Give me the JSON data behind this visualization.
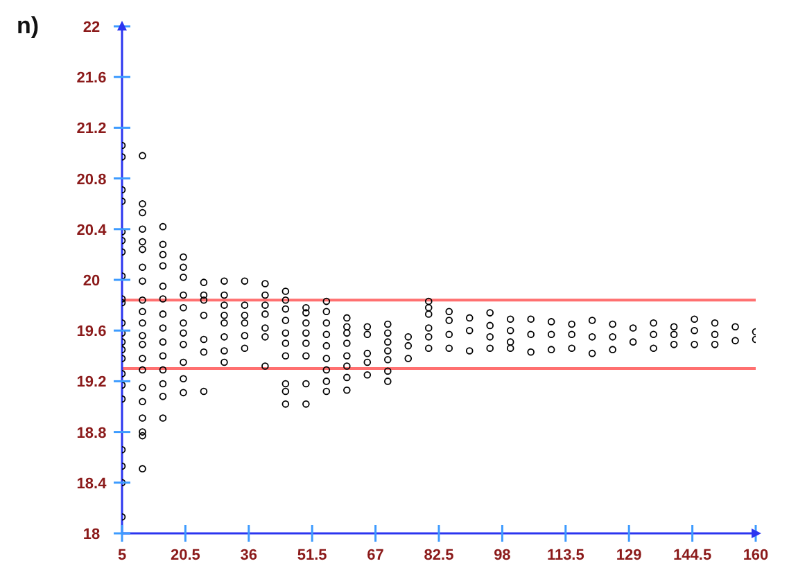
{
  "chart_data": {
    "type": "scatter",
    "title": "n)",
    "xlim": [
      5,
      160
    ],
    "xticks": [
      5,
      20.5,
      36,
      51.5,
      67,
      82.5,
      98,
      113.5,
      129,
      144.5,
      160
    ],
    "ylim": [
      18,
      22
    ],
    "yticks": [
      18,
      18.4,
      18.8,
      19.2,
      19.6,
      20,
      20.4,
      20.8,
      21.2,
      21.6,
      22
    ],
    "marker": "circle",
    "color": "#000000",
    "ref_lines": [
      {
        "axis": "y",
        "value": 19.84,
        "color": "#ff7070"
      },
      {
        "axis": "y",
        "value": 19.3,
        "color": "#ff7070"
      }
    ],
    "x": [
      5,
      5,
      5,
      5,
      5,
      5,
      5,
      5,
      5,
      5,
      5,
      5,
      5,
      5,
      5,
      5,
      5,
      5,
      5,
      5,
      5,
      5,
      10,
      10,
      10,
      10,
      10,
      10,
      10,
      10,
      10,
      10,
      10,
      10,
      10,
      10,
      10,
      10,
      10,
      10,
      10,
      10,
      10,
      15,
      15,
      15,
      15,
      15,
      15,
      15,
      15,
      15,
      15,
      15,
      15,
      15,
      15,
      20,
      20,
      20,
      20,
      20,
      20,
      20,
      20,
      20,
      20,
      20,
      25,
      25,
      25,
      25,
      25,
      25,
      25,
      30,
      30,
      30,
      30,
      30,
      30,
      30,
      30,
      35,
      35,
      35,
      35,
      35,
      35,
      40,
      40,
      40,
      40,
      40,
      40,
      40,
      45,
      45,
      45,
      45,
      45,
      45,
      45,
      45,
      45,
      45,
      50,
      50,
      50,
      50,
      50,
      50,
      50,
      50,
      55,
      55,
      55,
      55,
      55,
      55,
      55,
      55,
      55,
      60,
      60,
      60,
      60,
      60,
      60,
      60,
      60,
      65,
      65,
      65,
      65,
      65,
      70,
      70,
      70,
      70,
      70,
      70,
      70,
      75,
      75,
      75,
      80,
      80,
      80,
      80,
      80,
      80,
      85,
      85,
      85,
      85,
      90,
      90,
      90,
      95,
      95,
      95,
      95,
      100,
      100,
      100,
      100,
      105,
      105,
      105,
      110,
      110,
      110,
      115,
      115,
      115,
      120,
      120,
      120,
      125,
      125,
      125,
      130,
      130,
      135,
      135,
      135,
      140,
      140,
      140,
      145,
      145,
      145,
      150,
      150,
      150,
      155,
      155,
      160,
      160
    ],
    "values": [
      21.06,
      20.97,
      20.71,
      20.62,
      20.38,
      20.31,
      20.22,
      20.03,
      19.85,
      19.82,
      19.66,
      19.58,
      19.51,
      19.45,
      19.38,
      19.26,
      19.17,
      19.06,
      18.66,
      18.53,
      18.4,
      18.13,
      20.98,
      20.6,
      20.53,
      20.4,
      20.3,
      20.24,
      20.1,
      19.99,
      19.84,
      19.75,
      19.66,
      19.56,
      19.49,
      19.38,
      19.29,
      19.15,
      19.04,
      18.91,
      18.8,
      18.77,
      18.51,
      20.42,
      20.28,
      20.2,
      20.11,
      19.95,
      19.85,
      19.73,
      19.62,
      19.51,
      19.4,
      19.29,
      19.18,
      19.08,
      18.91,
      20.18,
      20.1,
      20.02,
      19.88,
      19.78,
      19.66,
      19.58,
      19.49,
      19.35,
      19.22,
      19.11,
      19.98,
      19.88,
      19.84,
      19.72,
      19.53,
      19.43,
      19.12,
      19.99,
      19.88,
      19.8,
      19.72,
      19.66,
      19.55,
      19.44,
      19.35,
      19.99,
      19.8,
      19.72,
      19.66,
      19.56,
      19.46,
      19.97,
      19.88,
      19.8,
      19.73,
      19.62,
      19.55,
      19.32,
      19.91,
      19.84,
      19.77,
      19.68,
      19.58,
      19.5,
      19.4,
      19.18,
      19.12,
      19.02,
      19.78,
      19.74,
      19.66,
      19.58,
      19.5,
      19.4,
      19.18,
      19.02,
      19.83,
      19.75,
      19.66,
      19.57,
      19.48,
      19.38,
      19.29,
      19.2,
      19.12,
      19.7,
      19.63,
      19.58,
      19.5,
      19.4,
      19.32,
      19.23,
      19.13,
      19.63,
      19.57,
      19.42,
      19.35,
      19.25,
      19.65,
      19.58,
      19.51,
      19.44,
      19.37,
      19.28,
      19.2,
      19.55,
      19.48,
      19.38,
      19.83,
      19.78,
      19.73,
      19.62,
      19.55,
      19.46,
      19.75,
      19.68,
      19.57,
      19.46,
      19.7,
      19.6,
      19.44,
      19.74,
      19.64,
      19.55,
      19.46,
      19.69,
      19.6,
      19.51,
      19.46,
      19.69,
      19.57,
      19.43,
      19.67,
      19.57,
      19.45,
      19.65,
      19.57,
      19.46,
      19.68,
      19.55,
      19.42,
      19.65,
      19.55,
      19.45,
      19.62,
      19.51,
      19.66,
      19.57,
      19.46,
      19.63,
      19.57,
      19.49,
      19.69,
      19.6,
      19.49,
      19.66,
      19.57,
      19.49,
      19.63,
      19.52,
      19.59,
      19.53
    ]
  }
}
